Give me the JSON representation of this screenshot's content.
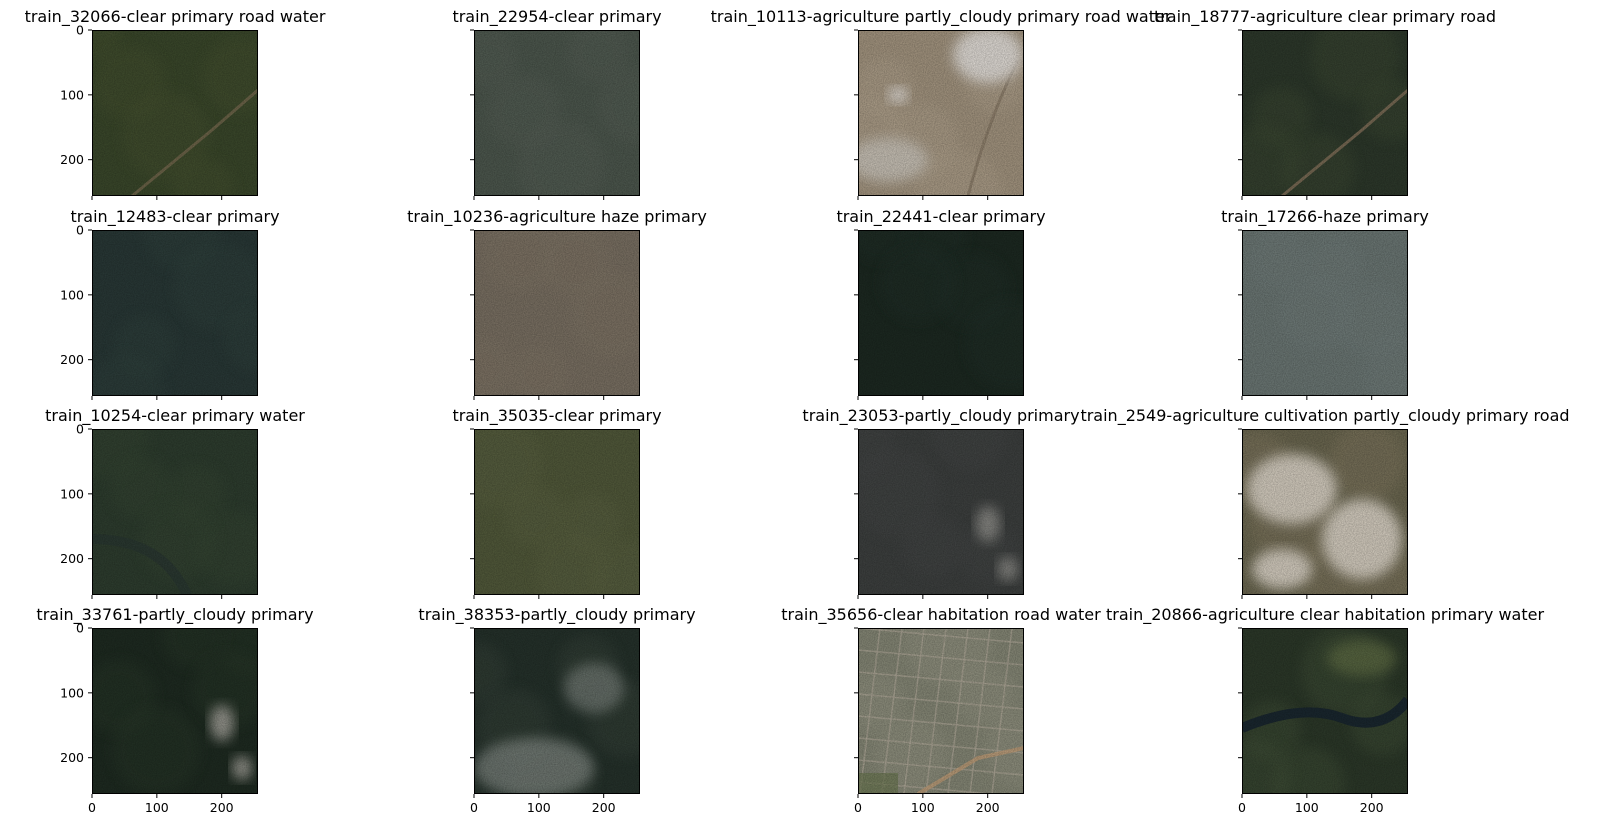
{
  "figure": {
    "panels": [
      {
        "title": "train_32066-clear primary road water",
        "colors": {
          "base": "#3c4a2c",
          "mid": "#4a5533",
          "feature": "#7c6e52"
        },
        "feature": "road"
      },
      {
        "title": "train_22954-clear primary",
        "colors": {
          "base": "#4f5a50",
          "mid": "#5a645a",
          "feature": "#5a645a"
        },
        "feature": "none"
      },
      {
        "title": "train_10113-agriculture partly_cloudy primary road water",
        "colors": {
          "base": "#a99a84",
          "mid": "#b9aa94",
          "feature": "#e9e4de"
        },
        "feature": "cloud-road"
      },
      {
        "title": "train_18777-agriculture clear primary road",
        "colors": {
          "base": "#2e3a2c",
          "mid": "#3f4e34",
          "feature": "#8d7860"
        },
        "feature": "road"
      },
      {
        "title": "train_12483-clear primary",
        "colors": {
          "base": "#2a3a38",
          "mid": "#334440",
          "feature": "#334440"
        },
        "feature": "none"
      },
      {
        "title": "train_10236-agriculture haze primary",
        "colors": {
          "base": "#7e7466",
          "mid": "#857a6a",
          "feature": "#6c6a68"
        },
        "feature": "none"
      },
      {
        "title": "train_22441-clear primary",
        "colors": {
          "base": "#1d2a22",
          "mid": "#24322a",
          "feature": "#24322a"
        },
        "feature": "none"
      },
      {
        "title": "train_17266-haze primary",
        "colors": {
          "base": "#6f7b78",
          "mid": "#768280",
          "feature": "#768280"
        },
        "feature": "none"
      },
      {
        "title": "train_10254-clear primary water",
        "colors": {
          "base": "#2f3f30",
          "mid": "#374836",
          "feature": "#2b3a33"
        },
        "feature": "river"
      },
      {
        "title": "train_35035-clear primary",
        "colors": {
          "base": "#545c3c",
          "mid": "#5e6644",
          "feature": "#5e6644"
        },
        "feature": "none"
      },
      {
        "title": "train_23053-partly_cloudy primary",
        "colors": {
          "base": "#3f4241",
          "mid": "#474a48",
          "feature": "#8a8a86"
        },
        "feature": "small-cloud"
      },
      {
        "title": "train_2549-agriculture cultivation partly_cloudy primary road",
        "colors": {
          "base": "#6e6a52",
          "mid": "#8a8066",
          "feature": "#dcd4c6"
        },
        "feature": "clouds"
      },
      {
        "title": "train_33761-partly_cloudy primary",
        "colors": {
          "base": "#1f2c22",
          "mid": "#2a3a2c",
          "feature": "#9a9a92"
        },
        "feature": "small-cloud"
      },
      {
        "title": "train_38353-partly_cloudy primary",
        "colors": {
          "base": "#26332c",
          "mid": "#3a463e",
          "feature": "#8d948f"
        },
        "feature": "haze-clouds"
      },
      {
        "title": "train_35656-clear habitation road water",
        "colors": {
          "base": "#8a8c7a",
          "mid": "#9c9c8a",
          "feature": "#c9a47c"
        },
        "feature": "town"
      },
      {
        "title": "train_20866-agriculture clear habitation primary water",
        "colors": {
          "base": "#2d3a2a",
          "mid": "#44553a",
          "feature": "#1a2830"
        },
        "feature": "river-wide"
      }
    ],
    "yticks": [
      "0",
      "100",
      "200"
    ],
    "xticks": [
      "0",
      "100",
      "200"
    ]
  }
}
